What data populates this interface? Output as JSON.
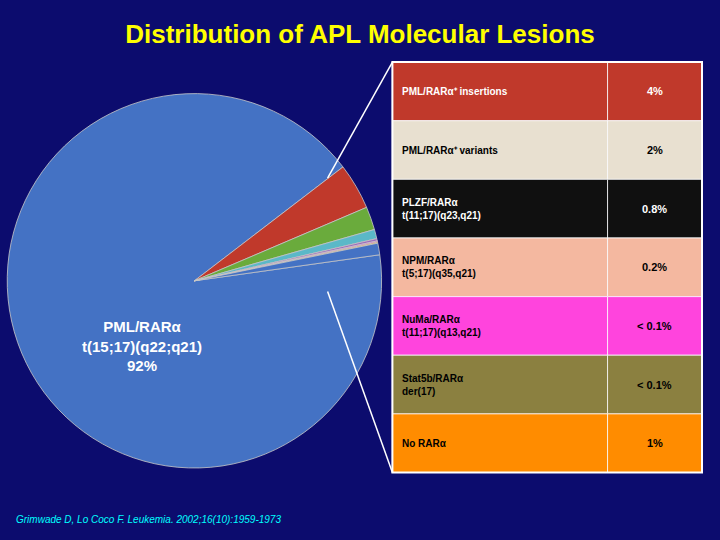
{
  "chart_data": {
    "type": "pie",
    "title": "Distribution of APL Molecular Lesions",
    "title_color": "#FFFF00",
    "background_color": "#0C0C6E",
    "values": [
      92,
      4,
      2,
      0.8,
      0.2,
      0.1,
      0.1,
      1
    ],
    "colors": [
      "#4472C4",
      "#C0392B",
      "#6AAB3C",
      "#5BB8C8",
      "#9B6BBF",
      "#FF44DD",
      "#E8A020",
      "#4472C4"
    ],
    "edge_color": "#C8C8C8",
    "annotations": [
      {
        "text": "PML/RARα\nt(15;17)(q22;q21)\n92%",
        "color": "#FFFFFF"
      },
      {
        "text": "Grimwade D, Lo Coco F. Leukemia. 2002;16(10):1959-1973",
        "color": "#00FFFF"
      }
    ],
    "table_rows": [
      {
        "label": "PML/RARα⁺ insertions",
        "value": "4%",
        "color": "#C0392B",
        "text_color": "#FFFFFF"
      },
      {
        "label": "PML/RARα⁺ variants",
        "value": "2%",
        "color": "#E8E0D0",
        "text_color": "#000000"
      },
      {
        "label": "PLZF/RARα\nt(11;17)(q23,q21)",
        "value": "0.8%",
        "color": "#101010",
        "text_color": "#FFFFFF"
      },
      {
        "label": "NPM/RARα\nt(5;17)(q35,q21)",
        "value": "0.2%",
        "color": "#F4B8A0",
        "text_color": "#000000"
      },
      {
        "label": "NuMa/RARα\nt(11;17)(q13,q21)",
        "value": "< 0.1%",
        "color": "#FF44DD",
        "text_color": "#000000"
      },
      {
        "label": "Stat5b/RARα\nder(17)",
        "value": "< 0.1%",
        "color": "#8B8040",
        "text_color": "#000000"
      },
      {
        "label": "No RARα",
        "value": "1%",
        "color": "#FF8C00",
        "text_color": "#000000"
      }
    ],
    "table_border_color": "#FFFFFF",
    "line_color": "#FFFFFF"
  }
}
